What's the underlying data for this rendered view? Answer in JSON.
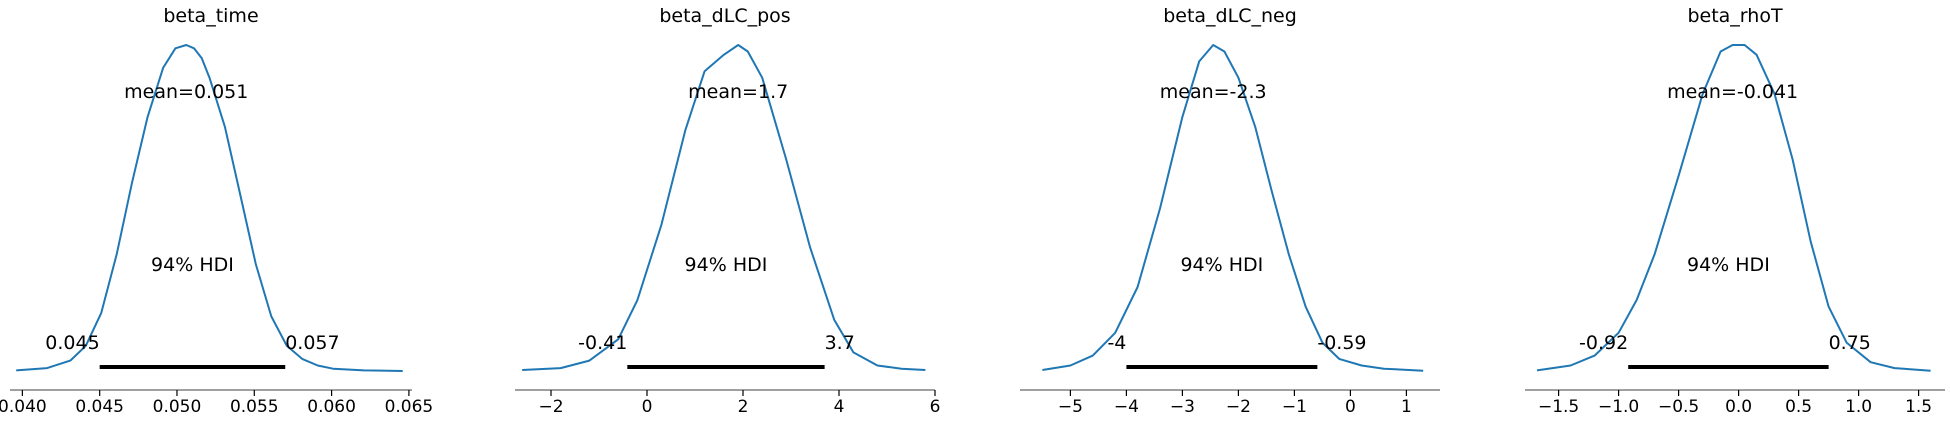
{
  "colors": {
    "density_line": "#1f77b4",
    "hdi_bar": "#000000",
    "axis": "#808080",
    "text": "#000000"
  },
  "chart_data": [
    {
      "type": "line",
      "title": "beta_time",
      "mean_label": "mean=0.051",
      "hdi_label": "94% HDI",
      "hdi": [
        0.045,
        0.057
      ],
      "hdi_labels": [
        "0.045",
        "0.057"
      ],
      "xlim": [
        0.0392,
        0.0652
      ],
      "xticks": [
        0.04,
        0.045,
        0.05,
        0.055,
        0.06,
        0.065
      ],
      "xtick_labels": [
        "0.040",
        "0.045",
        "0.050",
        "0.055",
        "0.060",
        "0.065"
      ],
      "density_x": [
        0.0396,
        0.0416,
        0.0431,
        0.0441,
        0.0451,
        0.0461,
        0.0471,
        0.0481,
        0.0491,
        0.0499,
        0.0506,
        0.0511,
        0.0516,
        0.0521,
        0.0531,
        0.0541,
        0.0551,
        0.0561,
        0.0571,
        0.0581,
        0.0591,
        0.0601,
        0.0621,
        0.0646
      ],
      "density_y": [
        0.005,
        0.012,
        0.035,
        0.08,
        0.18,
        0.36,
        0.58,
        0.78,
        0.93,
        0.99,
        1.0,
        0.99,
        0.96,
        0.9,
        0.75,
        0.54,
        0.33,
        0.17,
        0.08,
        0.04,
        0.02,
        0.01,
        0.005,
        0.003
      ]
    },
    {
      "type": "line",
      "title": "beta_dLC_pos",
      "mean_label": "mean=1.7",
      "hdi_label": "94% HDI",
      "hdi": [
        -0.41,
        3.7
      ],
      "hdi_labels": [
        "-0.41",
        "3.7"
      ],
      "xlim": [
        -2.75,
        6.0
      ],
      "xticks": [
        -2,
        0,
        2,
        4,
        6
      ],
      "xtick_labels": [
        "−2",
        "0",
        "2",
        "4",
        "6"
      ],
      "density_x": [
        -2.6,
        -1.8,
        -1.2,
        -0.6,
        -0.2,
        0.3,
        0.8,
        1.2,
        1.6,
        1.9,
        2.1,
        2.4,
        2.9,
        3.4,
        3.9,
        4.3,
        4.8,
        5.3,
        5.8
      ],
      "density_y": [
        0.006,
        0.012,
        0.035,
        0.1,
        0.22,
        0.45,
        0.74,
        0.92,
        0.97,
        1.0,
        0.98,
        0.9,
        0.65,
        0.38,
        0.16,
        0.06,
        0.02,
        0.01,
        0.006
      ]
    },
    {
      "type": "line",
      "title": "beta_dLC_neg",
      "mean_label": "mean=-2.3",
      "hdi_label": "94% HDI",
      "hdi": [
        -4.0,
        -0.59
      ],
      "hdi_labels": [
        "-4",
        "-0.59"
      ],
      "xlim": [
        -5.9,
        1.6
      ],
      "xticks": [
        -5,
        -4,
        -3,
        -2,
        -1,
        0,
        1
      ],
      "xtick_labels": [
        "−5",
        "−4",
        "−3",
        "−2",
        "−1",
        "0",
        "1"
      ],
      "density_x": [
        -5.5,
        -5.0,
        -4.6,
        -4.2,
        -3.8,
        -3.4,
        -3.0,
        -2.7,
        -2.45,
        -2.25,
        -2.0,
        -1.7,
        -1.4,
        -1.1,
        -0.8,
        -0.5,
        -0.2,
        0.2,
        0.6,
        1.3
      ],
      "density_y": [
        0.006,
        0.02,
        0.05,
        0.12,
        0.26,
        0.5,
        0.78,
        0.95,
        1.0,
        0.98,
        0.9,
        0.75,
        0.55,
        0.36,
        0.2,
        0.09,
        0.04,
        0.02,
        0.01,
        0.004
      ]
    },
    {
      "type": "line",
      "title": "beta_rhoT",
      "mean_label": "mean=-0.041",
      "hdi_label": "94% HDI",
      "hdi": [
        -0.92,
        0.75
      ],
      "hdi_labels": [
        "-0.92",
        "0.75"
      ],
      "xlim": [
        -1.78,
        1.72
      ],
      "xticks": [
        -1.5,
        -1.0,
        -0.5,
        0.0,
        0.5,
        1.0,
        1.5
      ],
      "xtick_labels": [
        "−1.5",
        "−1.0",
        "−0.5",
        "0.0",
        "0.5",
        "1.0",
        "1.5"
      ],
      "density_x": [
        -1.68,
        -1.4,
        -1.2,
        -1.0,
        -0.85,
        -0.7,
        -0.5,
        -0.3,
        -0.15,
        -0.05,
        0.05,
        0.15,
        0.3,
        0.45,
        0.6,
        0.75,
        0.9,
        1.1,
        1.3,
        1.6
      ],
      "density_y": [
        0.005,
        0.02,
        0.05,
        0.12,
        0.22,
        0.36,
        0.6,
        0.85,
        0.98,
        1.0,
        1.0,
        0.97,
        0.85,
        0.65,
        0.4,
        0.2,
        0.09,
        0.03,
        0.012,
        0.004
      ]
    }
  ]
}
